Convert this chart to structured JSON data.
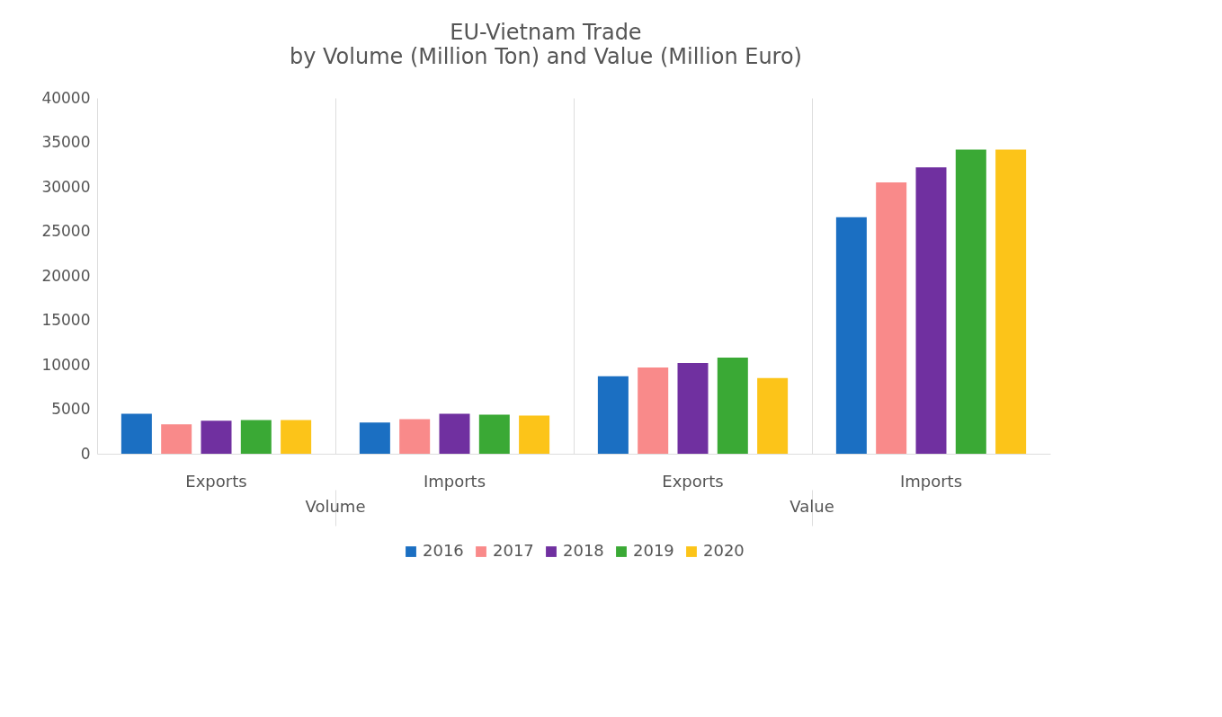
{
  "chart_data": {
    "type": "bar",
    "title": "EU-Vietnam Trade",
    "subtitle": "by Volume (Million Ton) and Value (Million Euro)",
    "categories": [
      "Exports",
      "Imports",
      "Exports",
      "Imports"
    ],
    "annotations": [
      "Volume",
      "Value"
    ],
    "series": [
      {
        "name": "2016",
        "color": "#1b6fc2",
        "values": [
          4500,
          3500,
          8700,
          26600
        ]
      },
      {
        "name": "2017",
        "color": "#f98a8a",
        "values": [
          3300,
          3900,
          9700,
          30500
        ]
      },
      {
        "name": "2018",
        "color": "#7030a0",
        "values": [
          3700,
          4500,
          10200,
          32200
        ]
      },
      {
        "name": "2019",
        "color": "#3aa935",
        "values": [
          3800,
          4400,
          10800,
          34200
        ]
      },
      {
        "name": "2020",
        "color": "#fcc419",
        "values": [
          3800,
          4300,
          8500,
          34200
        ]
      }
    ],
    "ylim": [
      0,
      40000
    ],
    "yticks": [
      0,
      5000,
      10000,
      15000,
      20000,
      25000,
      30000,
      35000,
      40000
    ],
    "grid": "x",
    "legend": "bottom"
  }
}
